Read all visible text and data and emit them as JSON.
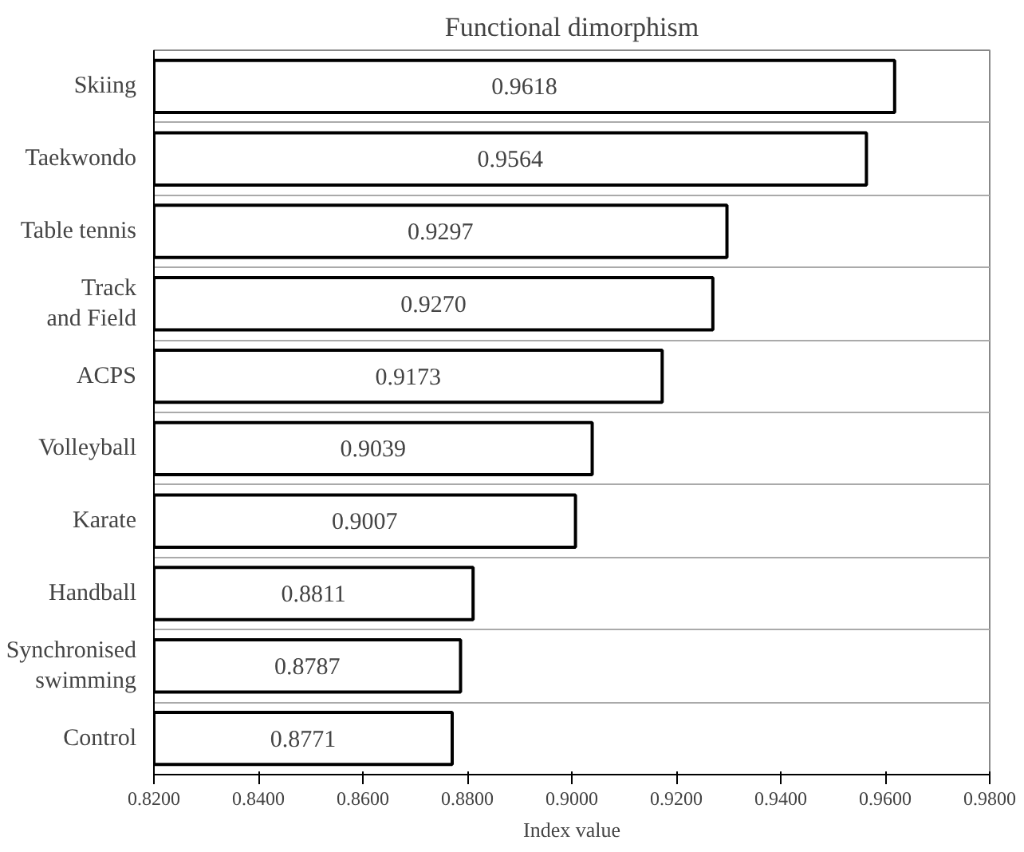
{
  "chart_data": {
    "type": "bar",
    "orientation": "horizontal",
    "title": "Functional dimorphism",
    "xlabel": "Index value",
    "categories": [
      "Skiing",
      "Taekwondo",
      "Table tennis",
      "Track and Field",
      "ACPS",
      "Volleyball",
      "Karate",
      "Handball",
      "Synchronised swimming",
      "Control"
    ],
    "values": [
      0.9618,
      0.9564,
      0.9297,
      0.927,
      0.9173,
      0.9039,
      0.9007,
      0.8811,
      0.8787,
      0.8771
    ],
    "value_labels": [
      "0.9618",
      "0.9564",
      "0.9297",
      "0.9270",
      "0.9173",
      "0.9039",
      "0.9007",
      "0.8811",
      "0.8787",
      "0.8771"
    ],
    "color": "#ffffff",
    "xlim": [
      0.82,
      0.98
    ],
    "xticks": [
      {
        "value": 0.82,
        "label": "0.8200"
      },
      {
        "value": 0.84,
        "label": "0.8400"
      },
      {
        "value": 0.86,
        "label": "0.8600"
      },
      {
        "value": 0.88,
        "label": "0.8800"
      },
      {
        "value": 0.9,
        "label": "0.9000"
      },
      {
        "value": 0.92,
        "label": "0.9200"
      },
      {
        "value": 0.94,
        "label": "0.9400"
      },
      {
        "value": 0.96,
        "label": "0.9600"
      },
      {
        "value": 0.98,
        "label": "0.9800"
      }
    ],
    "grid": "y"
  }
}
